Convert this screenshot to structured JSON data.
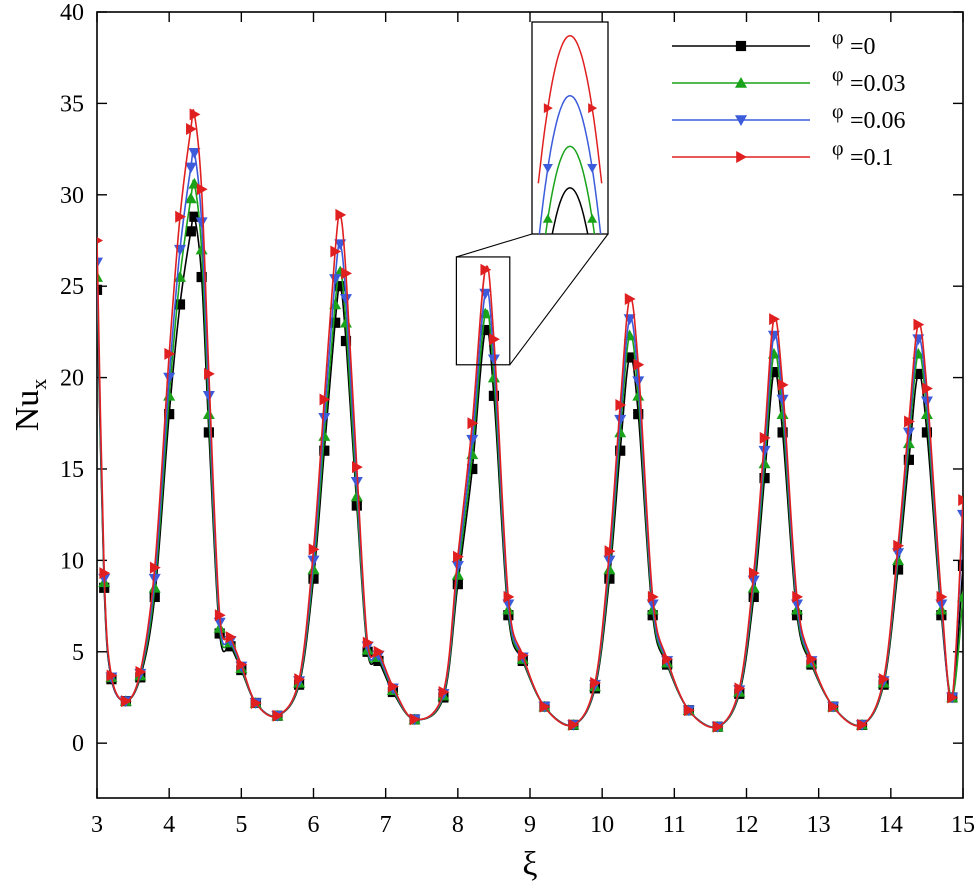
{
  "chart_data": {
    "type": "line",
    "title": "",
    "xlabel": "ξ",
    "ylabel": "Nu",
    "ylabel_subscript": "x",
    "xlim": [
      3,
      15
    ],
    "ylim": [
      -3,
      40
    ],
    "xticks": [
      3,
      4,
      5,
      6,
      7,
      8,
      9,
      10,
      11,
      12,
      13,
      14,
      15
    ],
    "yticks": [
      0,
      5,
      10,
      15,
      20,
      25,
      30,
      35,
      40
    ],
    "grid": false,
    "legend_position": "top-right",
    "legend_symbol": "φ",
    "peak_positions": [
      4.35,
      6.37,
      8.38,
      10.38,
      12.38,
      14.38
    ],
    "series": [
      {
        "name": "=0",
        "color": "#000000",
        "marker": "square",
        "peaks": [
          28.8,
          25.0,
          22.6,
          21.1,
          20.3,
          20.2
        ],
        "x": [
          3.0,
          3.1,
          3.2,
          3.4,
          3.6,
          3.8,
          4.0,
          4.15,
          4.3,
          4.35,
          4.45,
          4.55,
          4.7,
          4.85,
          5.0,
          5.2,
          5.5,
          5.8,
          6.0,
          6.15,
          6.3,
          6.37,
          6.45,
          6.6,
          6.75,
          6.9,
          7.1,
          7.4,
          7.8,
          8.0,
          8.2,
          8.38,
          8.5,
          8.7,
          8.9,
          9.2,
          9.6,
          9.9,
          10.1,
          10.25,
          10.38,
          10.5,
          10.7,
          10.9,
          11.2,
          11.6,
          11.9,
          12.1,
          12.25,
          12.38,
          12.5,
          12.7,
          12.9,
          13.2,
          13.6,
          13.9,
          14.1,
          14.25,
          14.38,
          14.5,
          14.7,
          14.85,
          15.0
        ],
        "y": [
          24.8,
          8.5,
          3.5,
          2.3,
          3.6,
          8.0,
          18.0,
          24.0,
          28.0,
          28.8,
          25.5,
          17.0,
          6.0,
          5.3,
          4.0,
          2.2,
          1.5,
          3.2,
          9.0,
          16.0,
          23.0,
          25.0,
          22.0,
          13.0,
          5.0,
          4.5,
          2.8,
          1.3,
          2.5,
          8.7,
          15.0,
          22.6,
          19.0,
          7.0,
          4.5,
          2.0,
          1.0,
          3.0,
          9.0,
          16.0,
          21.1,
          18.0,
          7.0,
          4.3,
          1.8,
          0.9,
          2.7,
          8.0,
          14.5,
          20.3,
          17.0,
          7.0,
          4.3,
          2.0,
          1.0,
          3.2,
          9.5,
          15.5,
          20.2,
          17.0,
          7.0,
          2.5,
          9.7
        ]
      },
      {
        "name": "=0.03",
        "color": "#1aa31a",
        "marker": "triangle-up",
        "peaks": [
          30.6,
          25.8,
          23.5,
          22.3,
          21.3,
          21.3
        ],
        "x": [
          3.0,
          3.1,
          3.2,
          3.4,
          3.6,
          3.8,
          4.0,
          4.15,
          4.3,
          4.35,
          4.45,
          4.55,
          4.7,
          4.85,
          5.0,
          5.2,
          5.5,
          5.8,
          6.0,
          6.15,
          6.3,
          6.37,
          6.45,
          6.6,
          6.75,
          6.9,
          7.1,
          7.4,
          7.8,
          8.0,
          8.2,
          8.38,
          8.5,
          8.7,
          8.9,
          9.2,
          9.6,
          9.9,
          10.1,
          10.25,
          10.38,
          10.5,
          10.7,
          10.9,
          11.2,
          11.6,
          11.9,
          12.1,
          12.25,
          12.38,
          12.5,
          12.7,
          12.9,
          13.2,
          13.6,
          13.9,
          14.1,
          14.25,
          14.38,
          14.5,
          14.7,
          14.85,
          15.0
        ],
        "y": [
          25.5,
          8.8,
          3.6,
          2.3,
          3.7,
          8.5,
          19.0,
          25.5,
          29.8,
          30.6,
          27.0,
          18.0,
          6.3,
          5.5,
          4.1,
          2.2,
          1.5,
          3.3,
          9.5,
          16.8,
          24.0,
          25.8,
          23.0,
          13.5,
          5.1,
          4.7,
          2.9,
          1.3,
          2.6,
          9.2,
          15.8,
          23.5,
          20.0,
          7.3,
          4.6,
          2.0,
          1.0,
          3.1,
          9.5,
          17.0,
          22.3,
          19.0,
          7.3,
          4.4,
          1.8,
          0.9,
          2.8,
          8.5,
          15.3,
          21.3,
          18.0,
          7.3,
          4.4,
          2.0,
          1.0,
          3.3,
          10.0,
          16.4,
          21.3,
          18.0,
          7.3,
          2.5,
          8.0
        ]
      },
      {
        "name": "=0.06",
        "color": "#3b5bdb",
        "marker": "triangle-down",
        "peaks": [
          32.3,
          27.3,
          24.6,
          23.2,
          22.3,
          22.1
        ],
        "x": [
          3.0,
          3.1,
          3.2,
          3.4,
          3.6,
          3.8,
          4.0,
          4.15,
          4.3,
          4.35,
          4.45,
          4.55,
          4.7,
          4.85,
          5.0,
          5.2,
          5.5,
          5.8,
          6.0,
          6.15,
          6.3,
          6.37,
          6.45,
          6.6,
          6.75,
          6.9,
          7.1,
          7.4,
          7.8,
          8.0,
          8.2,
          8.38,
          8.5,
          8.7,
          8.9,
          9.2,
          9.6,
          9.9,
          10.1,
          10.25,
          10.38,
          10.5,
          10.7,
          10.9,
          11.2,
          11.6,
          11.9,
          12.1,
          12.25,
          12.38,
          12.5,
          12.7,
          12.9,
          13.2,
          13.6,
          13.9,
          14.1,
          14.25,
          14.38,
          14.5,
          14.7,
          14.85,
          15.0
        ],
        "y": [
          26.3,
          9.0,
          3.6,
          2.3,
          3.8,
          9.0,
          20.0,
          27.0,
          31.5,
          32.3,
          28.5,
          19.0,
          6.6,
          5.6,
          4.2,
          2.2,
          1.5,
          3.4,
          10.0,
          17.8,
          25.4,
          27.3,
          24.3,
          14.3,
          5.3,
          4.8,
          3.0,
          1.3,
          2.7,
          9.7,
          16.6,
          24.6,
          21.0,
          7.6,
          4.7,
          2.0,
          1.0,
          3.2,
          10.0,
          17.7,
          23.2,
          19.8,
          7.6,
          4.5,
          1.8,
          0.9,
          2.9,
          8.9,
          16.0,
          22.3,
          18.8,
          7.6,
          4.5,
          2.0,
          1.0,
          3.4,
          10.4,
          17.0,
          22.1,
          18.7,
          7.6,
          2.5,
          12.5
        ]
      },
      {
        "name": "=0.1",
        "color": "#e02020",
        "marker": "triangle-right",
        "peaks": [
          34.4,
          28.9,
          25.9,
          24.3,
          23.2,
          22.9
        ],
        "x": [
          3.0,
          3.1,
          3.2,
          3.4,
          3.6,
          3.8,
          4.0,
          4.15,
          4.3,
          4.35,
          4.45,
          4.55,
          4.7,
          4.85,
          5.0,
          5.2,
          5.5,
          5.8,
          6.0,
          6.15,
          6.3,
          6.37,
          6.45,
          6.6,
          6.75,
          6.9,
          7.1,
          7.4,
          7.8,
          8.0,
          8.2,
          8.38,
          8.5,
          8.7,
          8.9,
          9.2,
          9.6,
          9.9,
          10.1,
          10.25,
          10.38,
          10.5,
          10.7,
          10.9,
          11.2,
          11.6,
          11.9,
          12.1,
          12.25,
          12.38,
          12.5,
          12.7,
          12.9,
          13.2,
          13.6,
          13.9,
          14.1,
          14.25,
          14.38,
          14.5,
          14.7,
          14.85,
          15.0
        ],
        "y": [
          27.5,
          9.3,
          3.7,
          2.3,
          3.9,
          9.6,
          21.3,
          28.8,
          33.6,
          34.4,
          30.3,
          20.2,
          7.0,
          5.8,
          4.3,
          2.2,
          1.5,
          3.5,
          10.6,
          18.8,
          26.9,
          28.9,
          25.7,
          15.1,
          5.5,
          5.0,
          3.1,
          1.3,
          2.8,
          10.2,
          17.5,
          25.9,
          22.1,
          8.0,
          4.8,
          2.0,
          1.0,
          3.3,
          10.5,
          18.5,
          24.3,
          20.7,
          8.0,
          4.6,
          1.8,
          0.9,
          3.0,
          9.3,
          16.7,
          23.2,
          19.6,
          8.0,
          4.6,
          2.0,
          1.0,
          3.5,
          10.8,
          17.6,
          22.9,
          19.4,
          8.0,
          2.5,
          13.3
        ]
      }
    ]
  }
}
